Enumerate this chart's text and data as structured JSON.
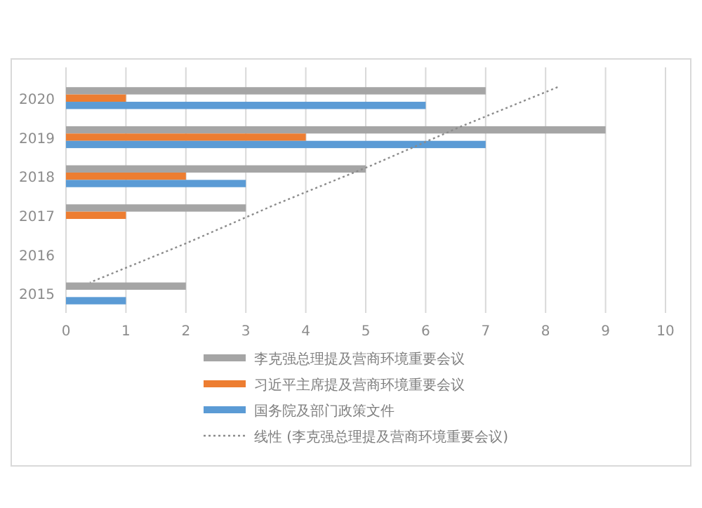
{
  "chart_data": {
    "type": "bar",
    "orientation": "horizontal",
    "categories": [
      "2020",
      "2019",
      "2018",
      "2017",
      "2016",
      "2015"
    ],
    "series": [
      {
        "name": "李克强总理提及营商环境重要会议",
        "color": "#a5a5a5",
        "values": [
          7,
          9,
          5,
          3,
          null,
          2
        ]
      },
      {
        "name": "习近平主席提及营商环境重要会议",
        "color": "#ed7d31",
        "values": [
          1,
          4,
          2,
          1,
          null,
          null
        ]
      },
      {
        "name": "国务院及部门政策文件",
        "color": "#5b9bd5",
        "values": [
          6,
          7,
          3,
          null,
          null,
          1
        ]
      },
      {
        "name": "线性 (李克强总理提及营商环境重要会议)",
        "type": "line",
        "line_style": "dotted",
        "color": "#8c8c8c",
        "values": [
          8.2,
          6.6,
          5.1,
          3.5,
          2.0,
          0.4
        ]
      }
    ],
    "xlim": [
      0,
      10
    ],
    "xticks": [
      0,
      1,
      2,
      3,
      4,
      5,
      6,
      7,
      8,
      9,
      10
    ],
    "grid": "x",
    "legend": "bottom"
  }
}
